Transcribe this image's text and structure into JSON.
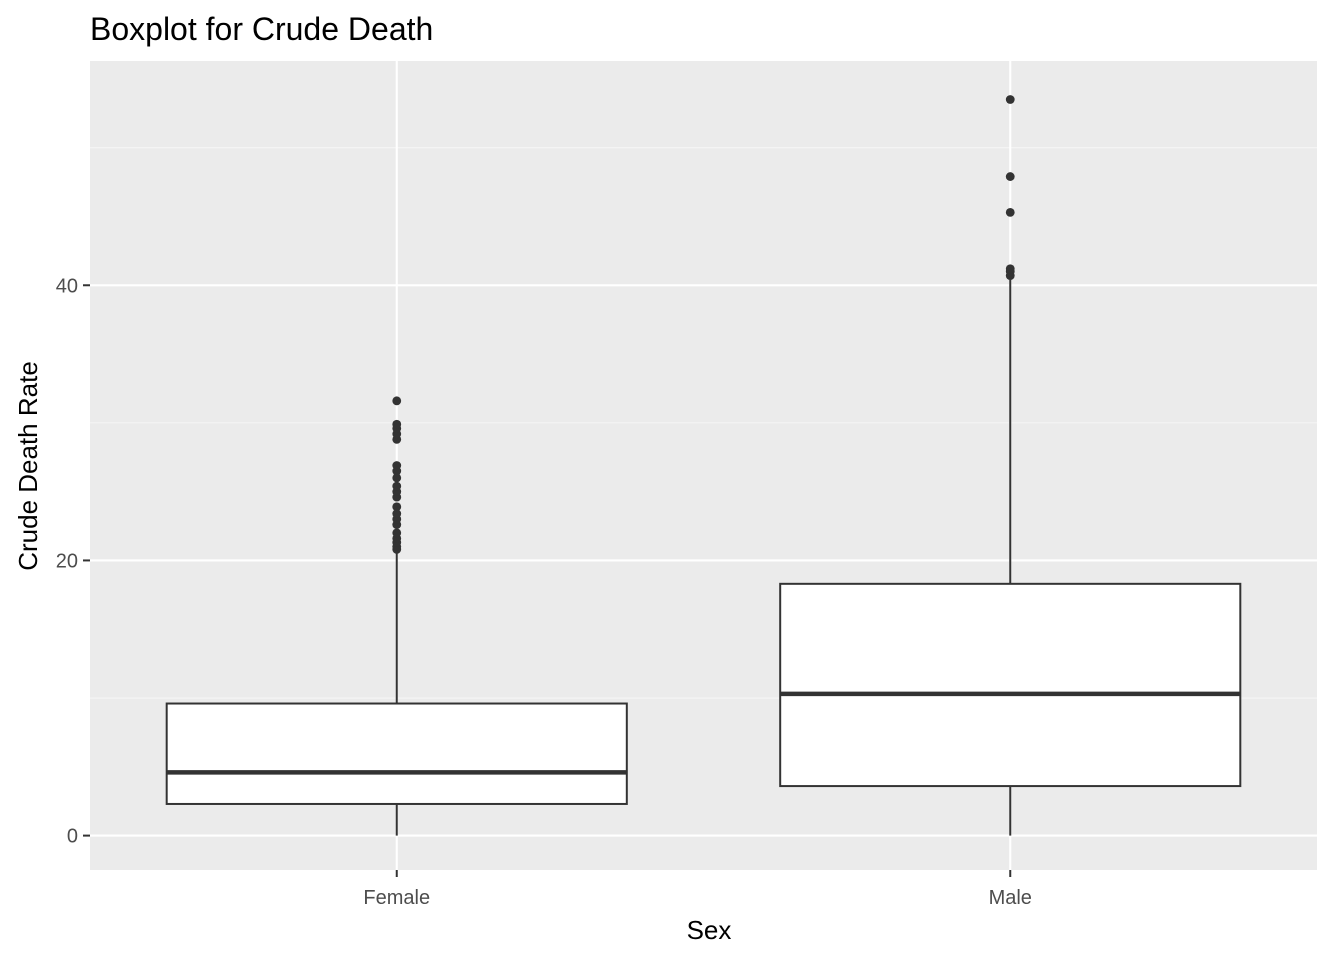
{
  "chart_data": {
    "type": "boxplot",
    "title": "Boxplot for Crude Death",
    "xlabel": "Sex",
    "ylabel": "Crude Death Rate",
    "categories": [
      "Female",
      "Male"
    ],
    "ylim": [
      -2.5,
      56.3
    ],
    "yticks": [
      0,
      20,
      40
    ],
    "yticklabels": [
      "0",
      "20",
      "40"
    ],
    "grid": true,
    "colors": {
      "panel_background": "#ebebeb",
      "grid_major": "#ffffff",
      "grid_minor": "#f5f5f5",
      "box_fill": "#ffffff",
      "box_line": "#333333",
      "outlier": "#333333",
      "tick": "#333333"
    },
    "series": [
      {
        "name": "Female",
        "whisker_low": 0,
        "q1": 2.3,
        "median": 4.6,
        "q3": 9.6,
        "whisker_high": 20.5,
        "outliers": [
          20.8,
          21.0,
          21.3,
          21.6,
          22.0,
          22.6,
          23.0,
          23.4,
          23.9,
          24.6,
          25.0,
          25.4,
          26.0,
          26.5,
          26.9,
          28.8,
          29.2,
          29.6,
          29.9,
          31.6
        ]
      },
      {
        "name": "Male",
        "whisker_low": 0,
        "q1": 3.6,
        "median": 10.3,
        "q3": 18.3,
        "whisker_high": 40.4,
        "outliers": [
          40.7,
          41.0,
          41.2,
          45.3,
          47.9,
          53.5
        ]
      }
    ]
  }
}
